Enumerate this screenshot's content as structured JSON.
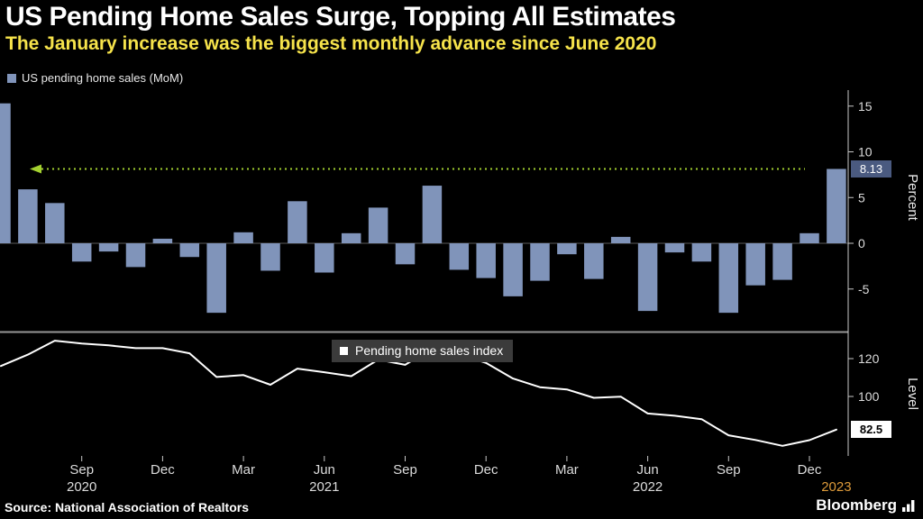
{
  "header": {
    "title": "US Pending Home Sales Surge, Topping All Estimates",
    "subtitle": "The January increase was the biggest monthly advance since June 2020"
  },
  "legend_top": {
    "label": "US pending home sales (MoM)"
  },
  "legend_bottom": {
    "label": "Pending home sales index"
  },
  "footer": {
    "source": "Source: National Association of Realtors",
    "brand": "Bloomberg"
  },
  "colors": {
    "background": "#000000",
    "title": "#ffffff",
    "subtitle": "#f6e34b",
    "bar": "#8094ba",
    "line": "#ffffff",
    "estimate_line": "#a4d130",
    "axis_text": "#dcdcdc",
    "year_highlight": "#de9b3a",
    "mom_badge_bg": "#4a5a80",
    "level_badge_bg": "#ffffff",
    "divider": "#969696"
  },
  "x_axis": {
    "categories": [
      "Jun 2020",
      "Jul 2020",
      "Aug 2020",
      "Sep 2020",
      "Oct 2020",
      "Nov 2020",
      "Dec 2020",
      "Jan 2021",
      "Feb 2021",
      "Mar 2021",
      "Apr 2021",
      "May 2021",
      "Jun 2021",
      "Jul 2021",
      "Aug 2021",
      "Sep 2021",
      "Oct 2021",
      "Nov 2021",
      "Dec 2021",
      "Jan 2022",
      "Feb 2022",
      "Mar 2022",
      "Apr 2022",
      "May 2022",
      "Jun 2022",
      "Jul 2022",
      "Aug 2022",
      "Sep 2022",
      "Oct 2022",
      "Nov 2022",
      "Dec 2022",
      "Jan 2023"
    ],
    "tick_labels": [
      "Sep",
      "Dec",
      "Mar",
      "Jun",
      "Sep",
      "Dec",
      "Mar",
      "Jun",
      "Sep",
      "Dec"
    ],
    "tick_indices": [
      3,
      6,
      9,
      12,
      15,
      18,
      21,
      24,
      27,
      30
    ],
    "years": [
      {
        "label": "2020",
        "index": 3,
        "color": "#dcdcdc"
      },
      {
        "label": "2021",
        "index": 12,
        "color": "#dcdcdc"
      },
      {
        "label": "2022",
        "index": 24,
        "color": "#dcdcdc"
      },
      {
        "label": "2023",
        "index": 31,
        "color": "#de9b3a"
      }
    ]
  },
  "chart_data": [
    {
      "type": "bar",
      "name": "US pending home sales (MoM)",
      "ylabel": "Percent",
      "yticks": [
        15,
        10,
        5,
        0,
        -5
      ],
      "ylim": [
        -8.5,
        16
      ],
      "values": [
        15.3,
        5.9,
        4.4,
        -2.0,
        -0.9,
        -2.6,
        0.5,
        -1.5,
        -7.6,
        1.2,
        -3.0,
        4.6,
        -3.2,
        1.1,
        3.9,
        -2.3,
        6.3,
        -2.9,
        -3.8,
        -5.8,
        -4.1,
        -1.2,
        -3.9,
        0.7,
        -7.4,
        -1.0,
        -2.0,
        -7.6,
        -4.6,
        -4.0,
        1.1,
        8.13
      ],
      "highlight_line": {
        "value": 8.13,
        "label": "8.13",
        "style": "dotted",
        "color": "#a4d130"
      }
    },
    {
      "type": "line",
      "name": "Pending home sales index",
      "ylabel": "Level",
      "yticks": [
        120,
        100
      ],
      "ylim": [
        68,
        134
      ],
      "values": [
        116.1,
        122.1,
        129.5,
        128.0,
        127.0,
        125.5,
        125.5,
        122.8,
        110.3,
        111.3,
        106.2,
        114.7,
        112.8,
        110.7,
        119.5,
        116.7,
        125.4,
        122.4,
        117.7,
        109.5,
        104.9,
        103.7,
        99.3,
        99.9,
        91.0,
        89.8,
        88.0,
        79.5,
        77.0,
        73.9,
        76.9,
        82.5
      ],
      "end_value": 82.5,
      "end_label": "82.5"
    }
  ]
}
